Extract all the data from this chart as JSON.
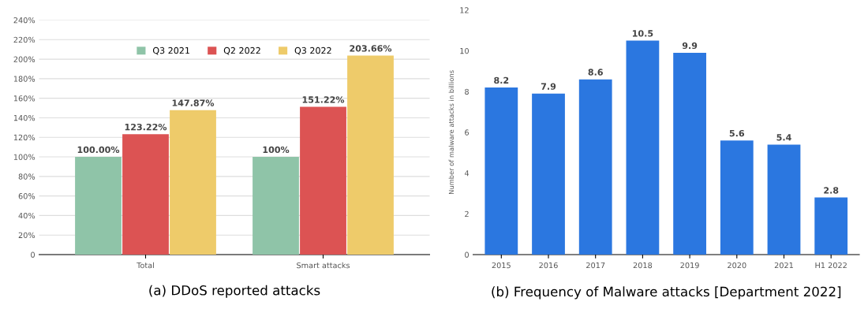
{
  "chart_data": [
    {
      "type": "bar",
      "categories": [
        "Total",
        "Smart attacks"
      ],
      "series": [
        {
          "name": "Q3 2021",
          "color": "#8fc4a8",
          "values": [
            100,
            100
          ],
          "value_labels": [
            "100.00%",
            "100%"
          ]
        },
        {
          "name": "Q2 2022",
          "color": "#dc5353",
          "values": [
            123.22,
            151.22
          ],
          "value_labels": [
            "123.22%",
            "151.22%"
          ]
        },
        {
          "name": "Q3 2022",
          "color": "#eecb6a",
          "values": [
            147.87,
            203.66
          ],
          "value_labels": [
            "147.87%",
            "203.66%"
          ]
        }
      ],
      "ylim": [
        0,
        240
      ],
      "yticks": [
        {
          "value": 0,
          "label": "0"
        },
        {
          "value": 20,
          "label": "20%"
        },
        {
          "value": 40,
          "label": "40%"
        },
        {
          "value": 60,
          "label": "60%"
        },
        {
          "value": 80,
          "label": "80%"
        },
        {
          "value": 100,
          "label": "100%"
        },
        {
          "value": 120,
          "label": "120%"
        },
        {
          "value": 140,
          "label": "140%"
        },
        {
          "value": 160,
          "label": "160%"
        },
        {
          "value": 180,
          "label": "180%"
        },
        {
          "value": 200,
          "label": "200%"
        },
        {
          "value": 220,
          "label": "220%"
        },
        {
          "value": 240,
          "label": "240%"
        }
      ],
      "grid": "y",
      "legend": "top",
      "annotations": [
        "(a) DDoS reported attacks"
      ]
    },
    {
      "type": "bar",
      "categories": [
        "2015",
        "2016",
        "2017",
        "2018",
        "2019",
        "2020",
        "2021",
        "H1 2022"
      ],
      "values": [
        8.2,
        7.9,
        8.6,
        10.5,
        9.9,
        5.6,
        5.4,
        2.8
      ],
      "color": "#2b77e0",
      "ylim": [
        0,
        12
      ],
      "yticks": [
        0,
        2,
        4,
        6,
        8,
        10,
        12
      ],
      "ylabel": "Number of malware attacks in billions",
      "data_labels": true,
      "annotations": [
        "(b) Frequency of Malware attacks [Department 2022]"
      ]
    }
  ]
}
